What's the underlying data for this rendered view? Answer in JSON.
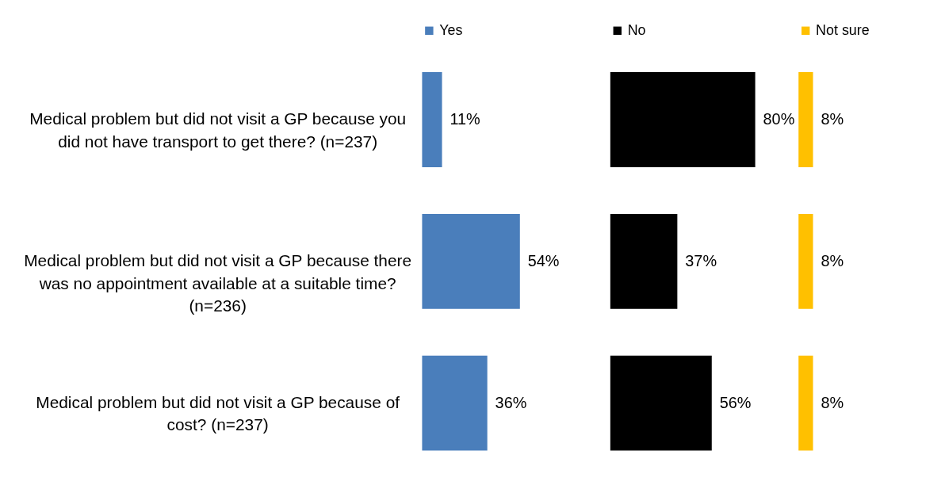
{
  "chart_data": [
    {
      "type": "bar",
      "orientation": "horizontal",
      "tick_labels": "y",
      "categories": [
        "Medical problem but did not visit a GP because you did not have transport to get there? (n=237)",
        "Medical problem but did not visit a GP because there was no appointment available at a suitable time? (n=236)",
        "Medical problem but did not visit a GP because of cost? (n=237)"
      ],
      "series": [
        {
          "name": "Yes",
          "color": "#4a7ebb",
          "values": [
            11,
            54,
            36
          ],
          "value_labels": [
            "11%",
            "54%",
            "36%"
          ]
        }
      ],
      "legend": "top"
    },
    {
      "type": "bar",
      "orientation": "horizontal",
      "tick_labels": false,
      "categories": [
        "Medical problem but did not visit a GP because you did not have transport to get there? (n=237)",
        "Medical problem but did not visit a GP because there was no appointment available at a suitable time? (n=236)",
        "Medical problem but did not visit a GP because of cost? (n=237)"
      ],
      "series": [
        {
          "name": "No",
          "color": "#000000",
          "values": [
            80,
            37,
            56
          ],
          "value_labels": [
            "80%",
            "37%",
            "56%"
          ]
        }
      ],
      "legend": "top"
    },
    {
      "type": "bar",
      "orientation": "horizontal",
      "tick_labels": false,
      "categories": [
        "Medical problem but did not visit a GP because you did not have transport to get there? (n=237)",
        "Medical problem but did not visit a GP because there was no appointment available at a suitable time? (n=236)",
        "Medical problem but did not visit a GP because of cost? (n=237)"
      ],
      "series": [
        {
          "name": "Not sure",
          "color": "#ffc000",
          "values": [
            8,
            8,
            8
          ],
          "value_labels": [
            "8%",
            "8%",
            "8%"
          ]
        }
      ],
      "legend": "top"
    }
  ]
}
